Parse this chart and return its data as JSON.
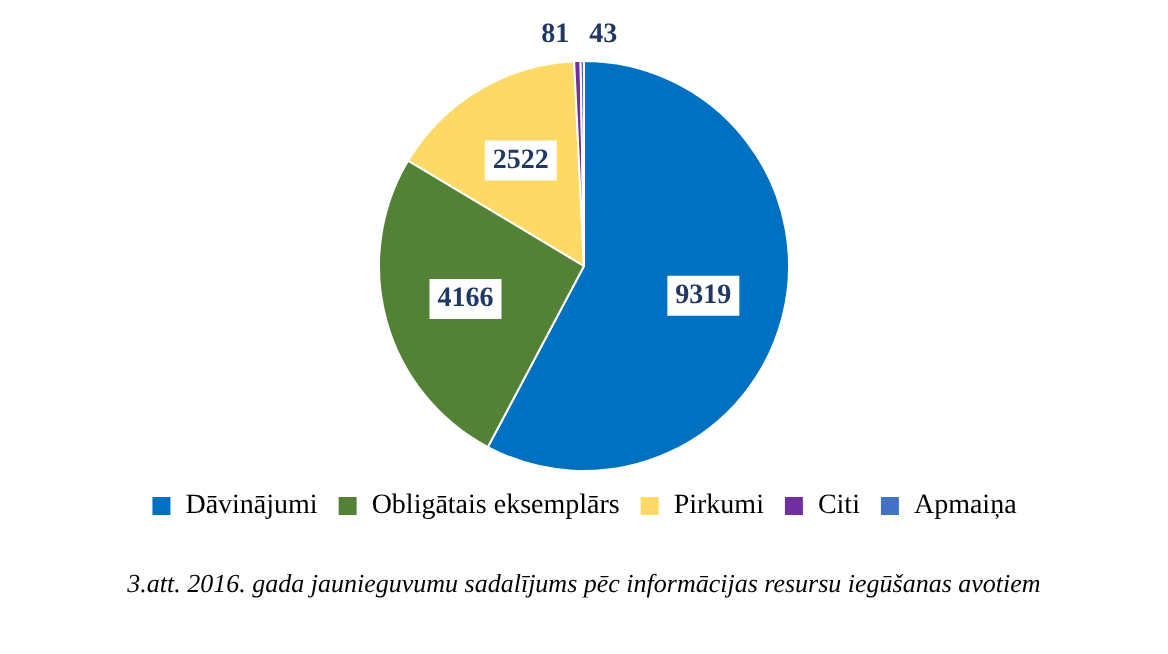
{
  "chart_data": {
    "type": "pie",
    "categories": [
      "Dāvinājumi",
      "Obligātais eksemplārs",
      "Pirkumi",
      "Citi",
      "Apmaiņa"
    ],
    "values": [
      9319,
      4166,
      2522,
      81,
      43
    ],
    "colors": [
      "#0070c0",
      "#538135",
      "#ffd966",
      "#7030a0",
      "#4472c4"
    ],
    "data_labels": true,
    "legend": "bottom",
    "annotations": [
      "3.att. 2016. gada jaunieguvumu sadalījums pēc informācijas resursu iegūšanas avotiem"
    ]
  }
}
